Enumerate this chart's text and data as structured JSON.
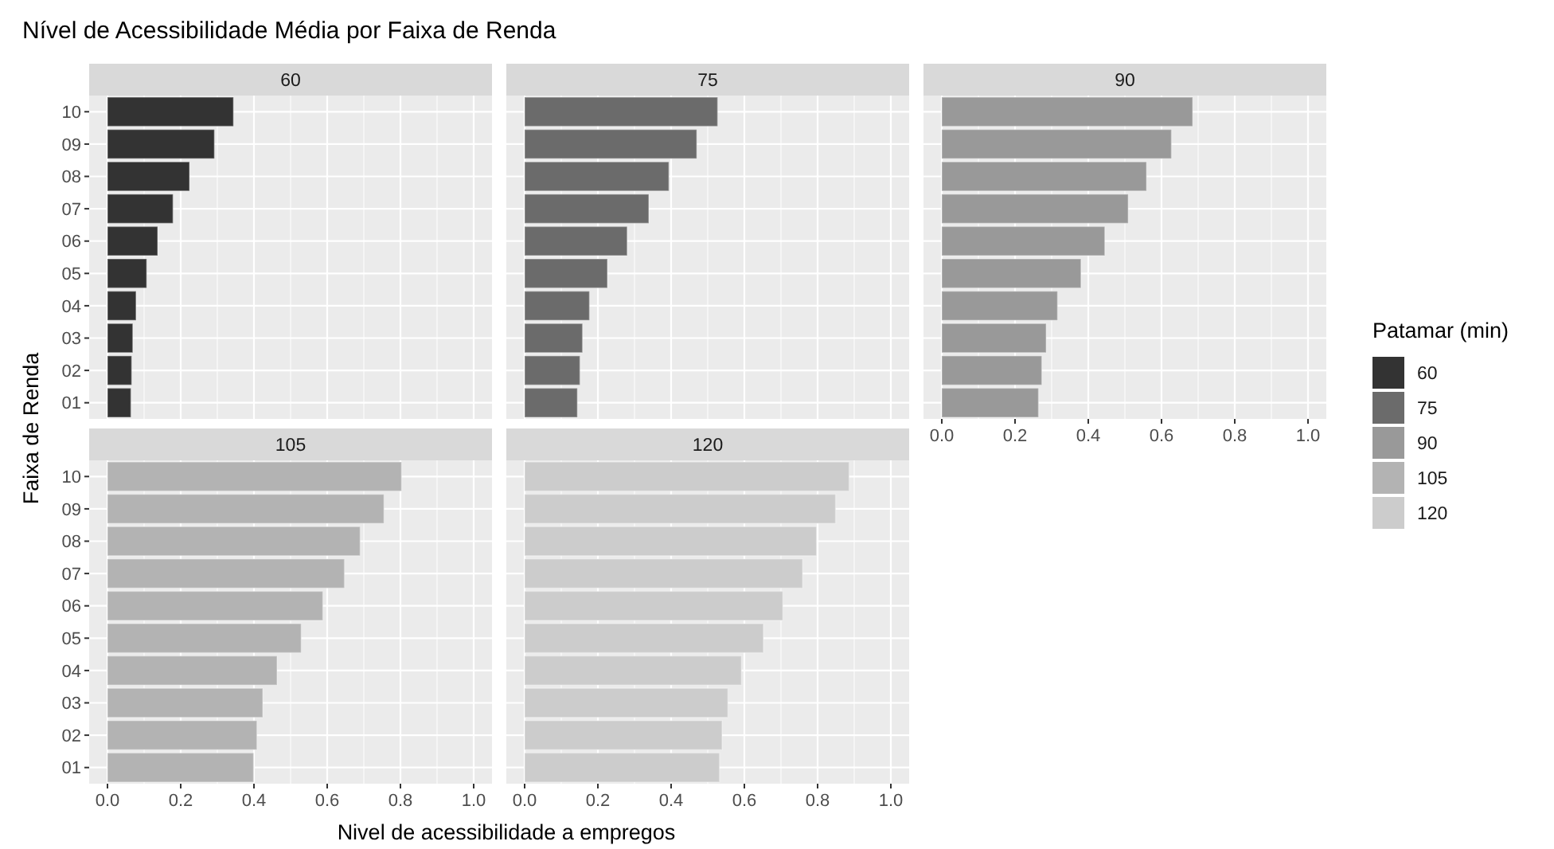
{
  "chart_data": [
    {
      "type": "bar",
      "orientation": "horizontal",
      "title": "60",
      "categories": [
        "10",
        "09",
        "08",
        "07",
        "06",
        "05",
        "04",
        "03",
        "02",
        "01"
      ],
      "series": [
        {
          "name": "60",
          "color": "#333333",
          "values": [
            0.344,
            0.292,
            0.224,
            0.179,
            0.137,
            0.107,
            0.078,
            0.069,
            0.066,
            0.064
          ]
        }
      ],
      "xlim": [
        -0.05,
        1.05
      ],
      "xticks": [
        0,
        0.2,
        0.4,
        0.6,
        0.8,
        1
      ],
      "grid": true,
      "tick_labels": "y",
      "annotations": [
        "Nível de Acessibilidade Média por Faixa de Renda"
      ],
      "xlabel": "Nivel de acessibilidade a empregos",
      "ylabel": "Faixa de Renda",
      "legend": "right",
      "legend_title": "Patamar (min)"
    },
    {
      "type": "bar",
      "orientation": "horizontal",
      "title": "75",
      "categories": [
        "10",
        "09",
        "08",
        "07",
        "06",
        "05",
        "04",
        "03",
        "02",
        "01"
      ],
      "series": [
        {
          "name": "75",
          "color": "#6b6b6b",
          "values": [
            0.527,
            0.47,
            0.394,
            0.339,
            0.28,
            0.226,
            0.177,
            0.158,
            0.151,
            0.144
          ]
        }
      ],
      "xlim": [
        -0.05,
        1.05
      ],
      "xticks": [
        0,
        0.2,
        0.4,
        0.6,
        0.8,
        1
      ],
      "grid": true,
      "tick_labels": false
    },
    {
      "type": "bar",
      "orientation": "horizontal",
      "title": "90",
      "categories": [
        "10",
        "09",
        "08",
        "07",
        "06",
        "05",
        "04",
        "03",
        "02",
        "01"
      ],
      "series": [
        {
          "name": "90",
          "color": "#999999",
          "values": [
            0.685,
            0.627,
            0.559,
            0.509,
            0.445,
            0.38,
            0.316,
            0.285,
            0.273,
            0.264
          ]
        }
      ],
      "xlim": [
        -0.05,
        1.05
      ],
      "xticks": [
        {
          "value": 0,
          "label": "0.0"
        },
        {
          "value": 0.2,
          "label": "0.2"
        },
        {
          "value": 0.4,
          "label": "0.4"
        },
        {
          "value": 0.6,
          "label": "0.6"
        },
        {
          "value": 0.8,
          "label": "0.8"
        },
        {
          "value": 1,
          "label": "1.0"
        }
      ],
      "grid": true,
      "tick_labels": "x"
    },
    {
      "type": "bar",
      "orientation": "horizontal",
      "title": "105",
      "categories": [
        "10",
        "09",
        "08",
        "07",
        "06",
        "05",
        "04",
        "03",
        "02",
        "01"
      ],
      "series": [
        {
          "name": "105",
          "color": "#b3b3b3",
          "values": [
            0.803,
            0.755,
            0.69,
            0.647,
            0.588,
            0.529,
            0.463,
            0.424,
            0.408,
            0.399
          ]
        }
      ],
      "xlim": [
        -0.05,
        1.05
      ],
      "xticks": [
        {
          "value": 0,
          "label": "0.0"
        },
        {
          "value": 0.2,
          "label": "0.2"
        },
        {
          "value": 0.4,
          "label": "0.4"
        },
        {
          "value": 0.6,
          "label": "0.6"
        },
        {
          "value": 0.8,
          "label": "0.8"
        },
        {
          "value": 1,
          "label": "1.0"
        }
      ],
      "grid": true
    },
    {
      "type": "bar",
      "orientation": "horizontal",
      "title": "120",
      "categories": [
        "10",
        "09",
        "08",
        "07",
        "06",
        "05",
        "04",
        "03",
        "02",
        "01"
      ],
      "series": [
        {
          "name": "120",
          "color": "#cccccc",
          "values": [
            0.886,
            0.849,
            0.797,
            0.759,
            0.705,
            0.652,
            0.592,
            0.555,
            0.539,
            0.532
          ]
        }
      ],
      "xlim": [
        -0.05,
        1.05
      ],
      "xticks": [
        {
          "value": 0,
          "label": "0.0"
        },
        {
          "value": 0.2,
          "label": "0.2"
        },
        {
          "value": 0.4,
          "label": "0.4"
        },
        {
          "value": 0.6,
          "label": "0.6"
        },
        {
          "value": 0.8,
          "label": "0.8"
        },
        {
          "value": 1,
          "label": "1.0"
        }
      ],
      "grid": true,
      "tick_labels": "x"
    }
  ]
}
